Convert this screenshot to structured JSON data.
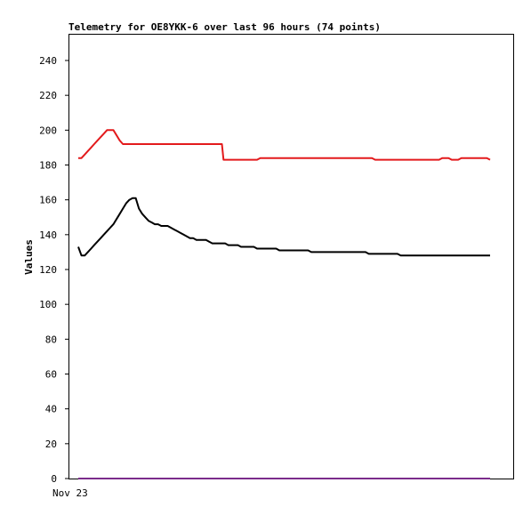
{
  "chart_data": {
    "type": "line",
    "title": "Telemetry for OE8YKK-6 over last 96 hours (74 points)",
    "xlabel": "",
    "ylabel": "Values",
    "x_tick_labels": [
      "Nov 23"
    ],
    "ylim": [
      0,
      255
    ],
    "y_ticks": [
      0,
      20,
      40,
      60,
      80,
      100,
      120,
      140,
      160,
      180,
      200,
      220,
      240
    ],
    "legend": "none",
    "grid": false,
    "series": [
      {
        "color": "#e31a1c",
        "points": [
          [
            0,
            184
          ],
          [
            1,
            184
          ],
          [
            2,
            186
          ],
          [
            3,
            188
          ],
          [
            4,
            190
          ],
          [
            5,
            192
          ],
          [
            6,
            194
          ],
          [
            7,
            196
          ],
          [
            8,
            198
          ],
          [
            9,
            200
          ],
          [
            10,
            200
          ],
          [
            11,
            200
          ],
          [
            12,
            197
          ],
          [
            13,
            194
          ],
          [
            14,
            192
          ],
          [
            15,
            192
          ],
          [
            16,
            192
          ],
          [
            17,
            192
          ],
          [
            18,
            192
          ],
          [
            19,
            192
          ],
          [
            20,
            192
          ],
          [
            21,
            192
          ],
          [
            22,
            192
          ],
          [
            23,
            192
          ],
          [
            24,
            192
          ],
          [
            25,
            192
          ],
          [
            26,
            192
          ],
          [
            27,
            192
          ],
          [
            28,
            192
          ],
          [
            29,
            192
          ],
          [
            30,
            192
          ],
          [
            31,
            192
          ],
          [
            32,
            192
          ],
          [
            33,
            192
          ],
          [
            34,
            192
          ],
          [
            35,
            192
          ],
          [
            36,
            192
          ],
          [
            37,
            192
          ],
          [
            38,
            192
          ],
          [
            39,
            192
          ],
          [
            40,
            192
          ],
          [
            41,
            192
          ],
          [
            42,
            192
          ],
          [
            43,
            192
          ],
          [
            44,
            192
          ],
          [
            45,
            192
          ],
          [
            45.5,
            183
          ],
          [
            46,
            183
          ],
          [
            47,
            183
          ],
          [
            48,
            183
          ],
          [
            49,
            183
          ],
          [
            50,
            183
          ],
          [
            51,
            183
          ],
          [
            52,
            183
          ],
          [
            53,
            183
          ],
          [
            54,
            183
          ],
          [
            55,
            183
          ],
          [
            56,
            183
          ],
          [
            57,
            184
          ],
          [
            58,
            184
          ],
          [
            59,
            184
          ],
          [
            60,
            184
          ],
          [
            61,
            184
          ],
          [
            62,
            184
          ],
          [
            63,
            184
          ],
          [
            64,
            184
          ],
          [
            65,
            184
          ],
          [
            66,
            184
          ],
          [
            67,
            184
          ],
          [
            68,
            184
          ],
          [
            69,
            184
          ],
          [
            70,
            184
          ],
          [
            71,
            184
          ],
          [
            72,
            184
          ],
          [
            73,
            184
          ],
          [
            74,
            184
          ],
          [
            75,
            184
          ],
          [
            76,
            184
          ],
          [
            77,
            184
          ],
          [
            78,
            184
          ],
          [
            79,
            184
          ],
          [
            80,
            184
          ],
          [
            81,
            184
          ],
          [
            82,
            184
          ],
          [
            83,
            184
          ],
          [
            84,
            184
          ],
          [
            85,
            184
          ],
          [
            86,
            184
          ],
          [
            87,
            184
          ],
          [
            88,
            184
          ],
          [
            89,
            184
          ],
          [
            90,
            184
          ],
          [
            91,
            184
          ],
          [
            92,
            184
          ],
          [
            93,
            183
          ],
          [
            94,
            183
          ],
          [
            95,
            183
          ],
          [
            96,
            183
          ],
          [
            97,
            183
          ],
          [
            98,
            183
          ],
          [
            99,
            183
          ],
          [
            100,
            183
          ],
          [
            101,
            183
          ],
          [
            102,
            183
          ],
          [
            103,
            183
          ],
          [
            104,
            183
          ],
          [
            105,
            183
          ],
          [
            106,
            183
          ],
          [
            107,
            183
          ],
          [
            108,
            183
          ],
          [
            109,
            183
          ],
          [
            110,
            183
          ],
          [
            111,
            183
          ],
          [
            112,
            183
          ],
          [
            113,
            183
          ],
          [
            114,
            184
          ],
          [
            115,
            184
          ],
          [
            116,
            184
          ],
          [
            117,
            183
          ],
          [
            118,
            183
          ],
          [
            119,
            183
          ],
          [
            120,
            184
          ],
          [
            121,
            184
          ],
          [
            122,
            184
          ],
          [
            123,
            184
          ],
          [
            124,
            184
          ],
          [
            125,
            184
          ],
          [
            126,
            184
          ],
          [
            127,
            184
          ],
          [
            128,
            184
          ],
          [
            129,
            183
          ]
        ]
      },
      {
        "color": "#000000",
        "points": [
          [
            0,
            133
          ],
          [
            1,
            128
          ],
          [
            2,
            128
          ],
          [
            3,
            130
          ],
          [
            4,
            132
          ],
          [
            5,
            134
          ],
          [
            6,
            136
          ],
          [
            7,
            138
          ],
          [
            8,
            140
          ],
          [
            9,
            142
          ],
          [
            10,
            144
          ],
          [
            11,
            146
          ],
          [
            12,
            149
          ],
          [
            13,
            152
          ],
          [
            14,
            155
          ],
          [
            15,
            158
          ],
          [
            16,
            160
          ],
          [
            17,
            161
          ],
          [
            18,
            161
          ],
          [
            19,
            155
          ],
          [
            20,
            152
          ],
          [
            21,
            150
          ],
          [
            22,
            148
          ],
          [
            23,
            147
          ],
          [
            24,
            146
          ],
          [
            25,
            146
          ],
          [
            26,
            145
          ],
          [
            27,
            145
          ],
          [
            28,
            145
          ],
          [
            29,
            144
          ],
          [
            30,
            143
          ],
          [
            31,
            142
          ],
          [
            32,
            141
          ],
          [
            33,
            140
          ],
          [
            34,
            139
          ],
          [
            35,
            138
          ],
          [
            36,
            138
          ],
          [
            37,
            137
          ],
          [
            38,
            137
          ],
          [
            39,
            137
          ],
          [
            40,
            137
          ],
          [
            41,
            136
          ],
          [
            42,
            135
          ],
          [
            43,
            135
          ],
          [
            44,
            135
          ],
          [
            45,
            135
          ],
          [
            46,
            135
          ],
          [
            47,
            134
          ],
          [
            48,
            134
          ],
          [
            49,
            134
          ],
          [
            50,
            134
          ],
          [
            51,
            133
          ],
          [
            52,
            133
          ],
          [
            53,
            133
          ],
          [
            54,
            133
          ],
          [
            55,
            133
          ],
          [
            56,
            132
          ],
          [
            57,
            132
          ],
          [
            58,
            132
          ],
          [
            59,
            132
          ],
          [
            60,
            132
          ],
          [
            61,
            132
          ],
          [
            62,
            132
          ],
          [
            63,
            131
          ],
          [
            64,
            131
          ],
          [
            65,
            131
          ],
          [
            66,
            131
          ],
          [
            67,
            131
          ],
          [
            68,
            131
          ],
          [
            69,
            131
          ],
          [
            70,
            131
          ],
          [
            71,
            131
          ],
          [
            72,
            131
          ],
          [
            73,
            130
          ],
          [
            74,
            130
          ],
          [
            75,
            130
          ],
          [
            76,
            130
          ],
          [
            77,
            130
          ],
          [
            78,
            130
          ],
          [
            79,
            130
          ],
          [
            80,
            130
          ],
          [
            81,
            130
          ],
          [
            82,
            130
          ],
          [
            83,
            130
          ],
          [
            84,
            130
          ],
          [
            85,
            130
          ],
          [
            86,
            130
          ],
          [
            87,
            130
          ],
          [
            88,
            130
          ],
          [
            89,
            130
          ],
          [
            90,
            130
          ],
          [
            91,
            129
          ],
          [
            92,
            129
          ],
          [
            93,
            129
          ],
          [
            94,
            129
          ],
          [
            95,
            129
          ],
          [
            96,
            129
          ],
          [
            97,
            129
          ],
          [
            98,
            129
          ],
          [
            99,
            129
          ],
          [
            100,
            129
          ],
          [
            101,
            128
          ],
          [
            102,
            128
          ],
          [
            103,
            128
          ],
          [
            104,
            128
          ],
          [
            105,
            128
          ],
          [
            106,
            128
          ],
          [
            107,
            128
          ],
          [
            108,
            128
          ],
          [
            109,
            128
          ],
          [
            110,
            128
          ],
          [
            111,
            128
          ],
          [
            112,
            128
          ],
          [
            113,
            128
          ],
          [
            114,
            128
          ],
          [
            115,
            128
          ],
          [
            116,
            128
          ],
          [
            117,
            128
          ],
          [
            118,
            128
          ],
          [
            119,
            128
          ],
          [
            120,
            128
          ],
          [
            121,
            128
          ],
          [
            122,
            128
          ],
          [
            123,
            128
          ],
          [
            124,
            128
          ],
          [
            125,
            128
          ],
          [
            126,
            128
          ],
          [
            127,
            128
          ],
          [
            128,
            128
          ],
          [
            129,
            128
          ]
        ]
      },
      {
        "color": "#7b2c8b",
        "points": [
          [
            0,
            0
          ],
          [
            129,
            0
          ]
        ]
      }
    ]
  }
}
